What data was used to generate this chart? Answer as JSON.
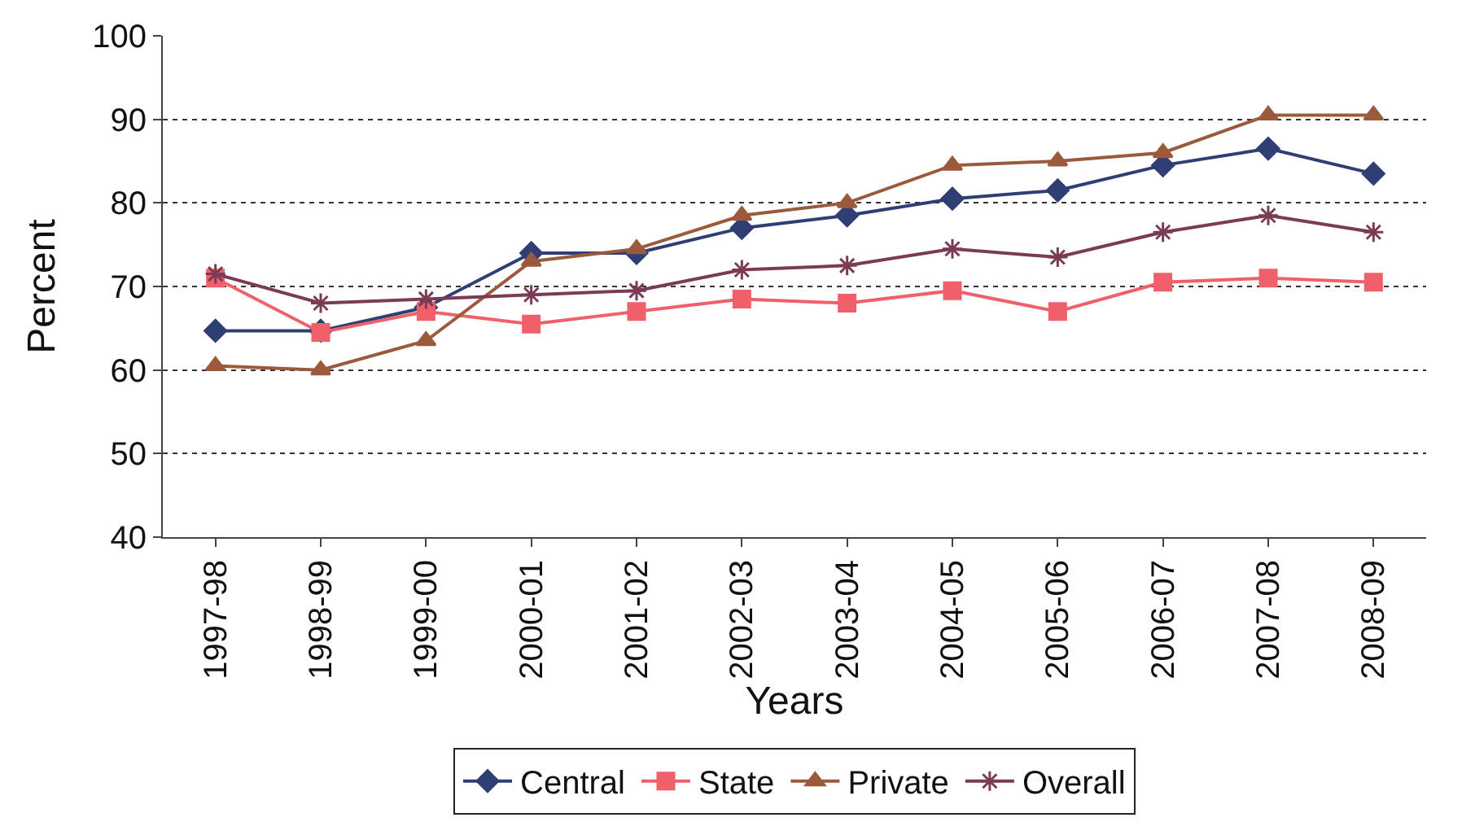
{
  "chart_data": {
    "type": "line",
    "xlabel": "Years",
    "ylabel": "Percent",
    "categories": [
      "1997-98",
      "1998-99",
      "1999-00",
      "2000-01",
      "2001-02",
      "2002-03",
      "2003-04",
      "2004-05",
      "2005-06",
      "2006-07",
      "2007-08",
      "2008-09"
    ],
    "series": [
      {
        "name": "Central",
        "color": "#2f3f73",
        "marker": "diamond",
        "values": [
          64.7,
          64.7,
          67.5,
          74,
          74,
          77,
          78.5,
          80.5,
          81.5,
          84.5,
          86.5,
          83.5
        ]
      },
      {
        "name": "State",
        "color": "#f0606a",
        "marker": "square",
        "values": [
          71,
          64.5,
          67,
          65.5,
          67,
          68.5,
          68,
          69.5,
          67,
          70.5,
          71,
          70.5
        ]
      },
      {
        "name": "Private",
        "color": "#9b5a3c",
        "marker": "triangle",
        "values": [
          60.5,
          60,
          63.5,
          73,
          74.5,
          78.5,
          80,
          84.5,
          85,
          86,
          90.5,
          90.5
        ]
      },
      {
        "name": "Overall",
        "color": "#7a3b55",
        "marker": "cross",
        "values": [
          71.5,
          68,
          68.5,
          69,
          69.5,
          72,
          72.5,
          74.5,
          73.5,
          76.5,
          78.5,
          76.5
        ]
      }
    ],
    "ylim": [
      40,
      100
    ],
    "yticks": [
      40,
      50,
      60,
      70,
      80,
      90,
      100
    ],
    "grid": "y",
    "legend": "bottom"
  }
}
